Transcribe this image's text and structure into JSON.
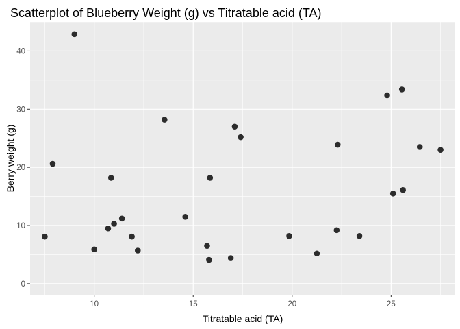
{
  "chart_data": {
    "type": "scatter",
    "title": "Scatterplot of Blueberry Weight (g) vs Titratable acid (TA)",
    "xlabel": "Titratable acid (TA)",
    "ylabel": "Berry weight (g)",
    "xlim": [
      6.76,
      28.24
    ],
    "ylim": [
      -1.9,
      45.0
    ],
    "xticks": [
      10,
      15,
      20,
      25
    ],
    "yticks": [
      0,
      10,
      20,
      30,
      40
    ],
    "grid": true,
    "colors": {
      "panel": "#ebebeb",
      "grid": "#ffffff",
      "point": "#222222"
    },
    "points": [
      {
        "x": 7.5,
        "y": 8.1
      },
      {
        "x": 7.9,
        "y": 20.6
      },
      {
        "x": 9.0,
        "y": 42.9
      },
      {
        "x": 10.0,
        "y": 5.9
      },
      {
        "x": 10.7,
        "y": 9.5
      },
      {
        "x": 10.85,
        "y": 18.2
      },
      {
        "x": 11.0,
        "y": 10.3
      },
      {
        "x": 11.4,
        "y": 11.2
      },
      {
        "x": 11.9,
        "y": 8.1
      },
      {
        "x": 12.2,
        "y": 5.7
      },
      {
        "x": 13.55,
        "y": 28.2
      },
      {
        "x": 14.6,
        "y": 11.5
      },
      {
        "x": 15.7,
        "y": 6.5
      },
      {
        "x": 15.8,
        "y": 4.1
      },
      {
        "x": 15.85,
        "y": 18.2
      },
      {
        "x": 16.9,
        "y": 4.4
      },
      {
        "x": 17.1,
        "y": 27.0
      },
      {
        "x": 17.4,
        "y": 25.2
      },
      {
        "x": 19.85,
        "y": 8.2
      },
      {
        "x": 21.25,
        "y": 5.2
      },
      {
        "x": 22.25,
        "y": 9.2
      },
      {
        "x": 22.3,
        "y": 23.9
      },
      {
        "x": 23.4,
        "y": 8.2
      },
      {
        "x": 24.8,
        "y": 32.4
      },
      {
        "x": 25.1,
        "y": 15.5
      },
      {
        "x": 25.55,
        "y": 33.4
      },
      {
        "x": 25.6,
        "y": 16.1
      },
      {
        "x": 26.45,
        "y": 23.5
      },
      {
        "x": 27.5,
        "y": 23.0
      }
    ]
  }
}
